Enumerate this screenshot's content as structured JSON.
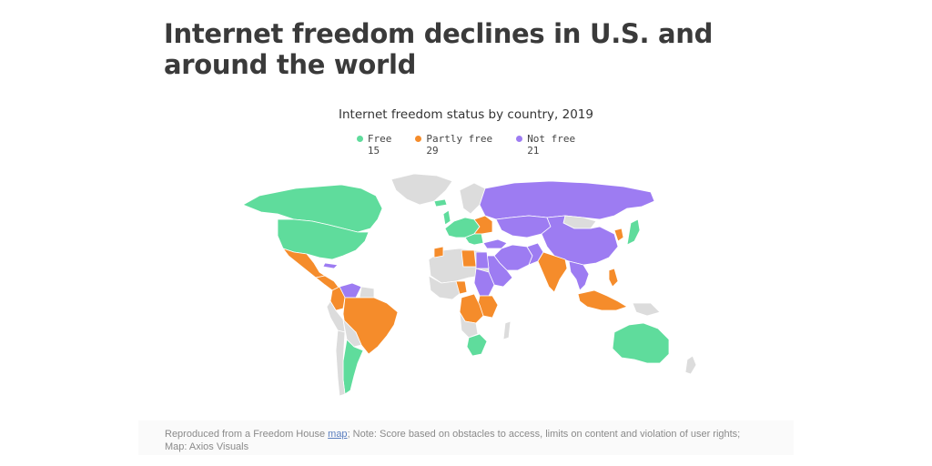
{
  "headline": "Internet freedom declines in U.S. and around the world",
  "map": {
    "title": "Internet freedom status by country, 2019",
    "legend": [
      {
        "label": "Free",
        "count": "15",
        "color": "#5fdc9c"
      },
      {
        "label": "Partly free",
        "count": "29",
        "color": "#f58c2b"
      },
      {
        "label": "Not free",
        "count": "21",
        "color": "#9d7cf2"
      }
    ],
    "no_data_color": "#dcdcdc"
  },
  "footer": {
    "prefix": "Reproduced from a Freedom House ",
    "link": "map",
    "suffix": "; Note: Score based on obstacles to access, limits on content and violation of user rights;",
    "credit": "Map: Axios Visuals"
  }
}
